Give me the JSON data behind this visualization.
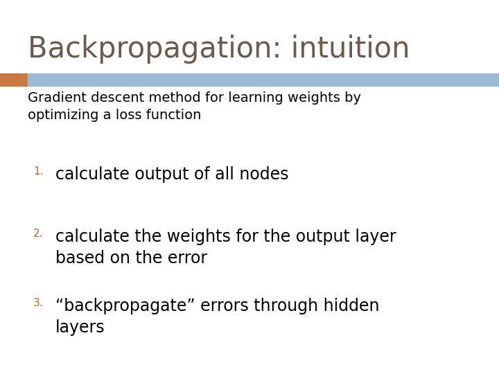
{
  "title": "Backpropagation: intuition",
  "title_color": "#6b5b4e",
  "title_fontsize": 30,
  "subtitle": "Gradient descent method for learning weights by\noptimizing a loss function",
  "subtitle_fontsize": 14,
  "subtitle_color": "#000000",
  "subtitle_fontweight": "normal",
  "items": [
    "calculate output of all nodes",
    "calculate the weights for the output layer\nbased on the error",
    "“backpropagate” errors through hidden\nlayers"
  ],
  "item_fontsize": 17,
  "item_color": "#000000",
  "number_color": "#c0622a",
  "number_fontsize": 11,
  "background_color": "#ffffff",
  "bar_orange_color": "#c87941",
  "bar_blue_color": "#9db8d2",
  "fig_width": 7.2,
  "fig_height": 5.4,
  "dpi": 100
}
